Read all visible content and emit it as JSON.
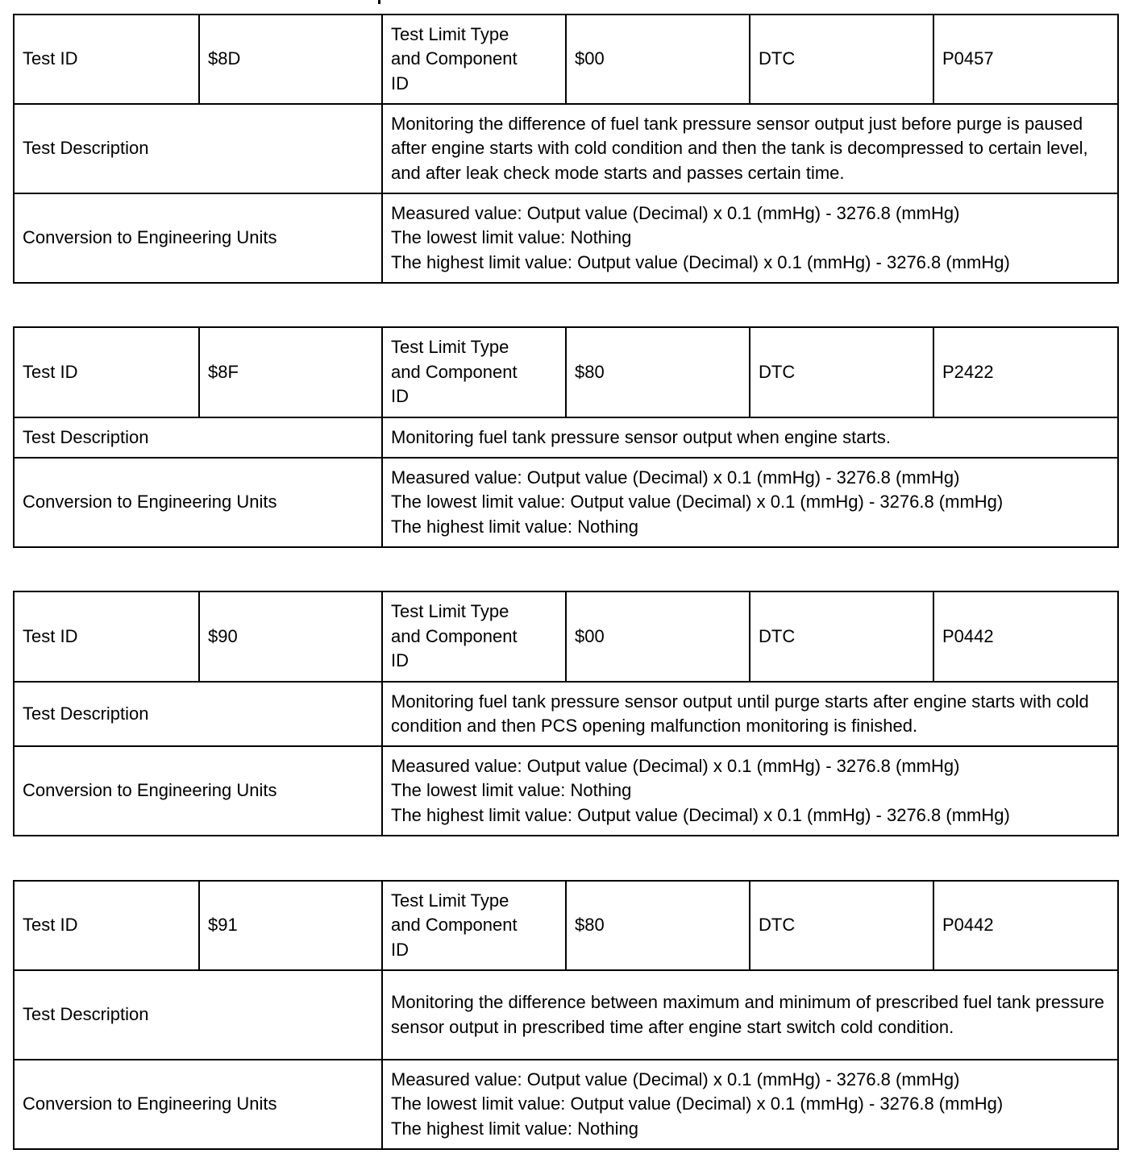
{
  "labels": {
    "test_id": "Test ID",
    "limit_type": "Test Limit Type\n and Component\n ID",
    "dtc": "DTC",
    "description": "Test Description",
    "conversion": "Conversion to Engineering Units"
  },
  "tables": [
    {
      "test_id": "$8D",
      "limit_type": "$00",
      "dtc": "P0457",
      "description": "Monitoring the difference of fuel tank pressure sensor output just before purge is paused after engine starts with cold condition and then the tank is decompressed to certain level, and after leak check mode starts and passes certain time.",
      "conversion": "Measured value: Output value (Decimal) x 0.1 (mmHg) - 3276.8 (mmHg)\nThe lowest limit value: Nothing\nThe highest limit value: Output value (Decimal) x 0.1 (mmHg) - 3276.8 (mmHg)"
    },
    {
      "test_id": "$8F",
      "limit_type": "$80",
      "dtc": "P2422",
      "description": "Monitoring fuel tank pressure sensor output when engine starts.",
      "conversion": "Measured value: Output value (Decimal) x 0.1 (mmHg) - 3276.8 (mmHg)\nThe lowest limit value: Output value (Decimal) x 0.1 (mmHg) - 3276.8 (mmHg)\nThe highest limit value: Nothing"
    },
    {
      "test_id": "$90",
      "limit_type": "$00",
      "dtc": "P0442",
      "description": "Monitoring fuel tank pressure sensor output until purge starts after engine starts with cold condition and then PCS opening malfunction monitoring is finished.",
      "conversion": "Measured value: Output value (Decimal) x 0.1 (mmHg) - 3276.8 (mmHg)\nThe lowest limit value: Nothing\nThe highest limit value: Output value (Decimal) x 0.1 (mmHg) - 3276.8 (mmHg)"
    },
    {
      "test_id": "$91",
      "limit_type": "$80",
      "dtc": "P0442",
      "description": "Monitoring the difference between maximum and minimum of prescribed fuel tank pressure sensor output in prescribed time after engine start switch cold condition.",
      "conversion": "Measured value: Output value (Decimal) x 0.1 (mmHg) - 3276.8 (mmHg)\nThe lowest limit value: Output value (Decimal) x 0.1 (mmHg) - 3276.8 (mmHg)\nThe highest limit value: Nothing"
    }
  ]
}
